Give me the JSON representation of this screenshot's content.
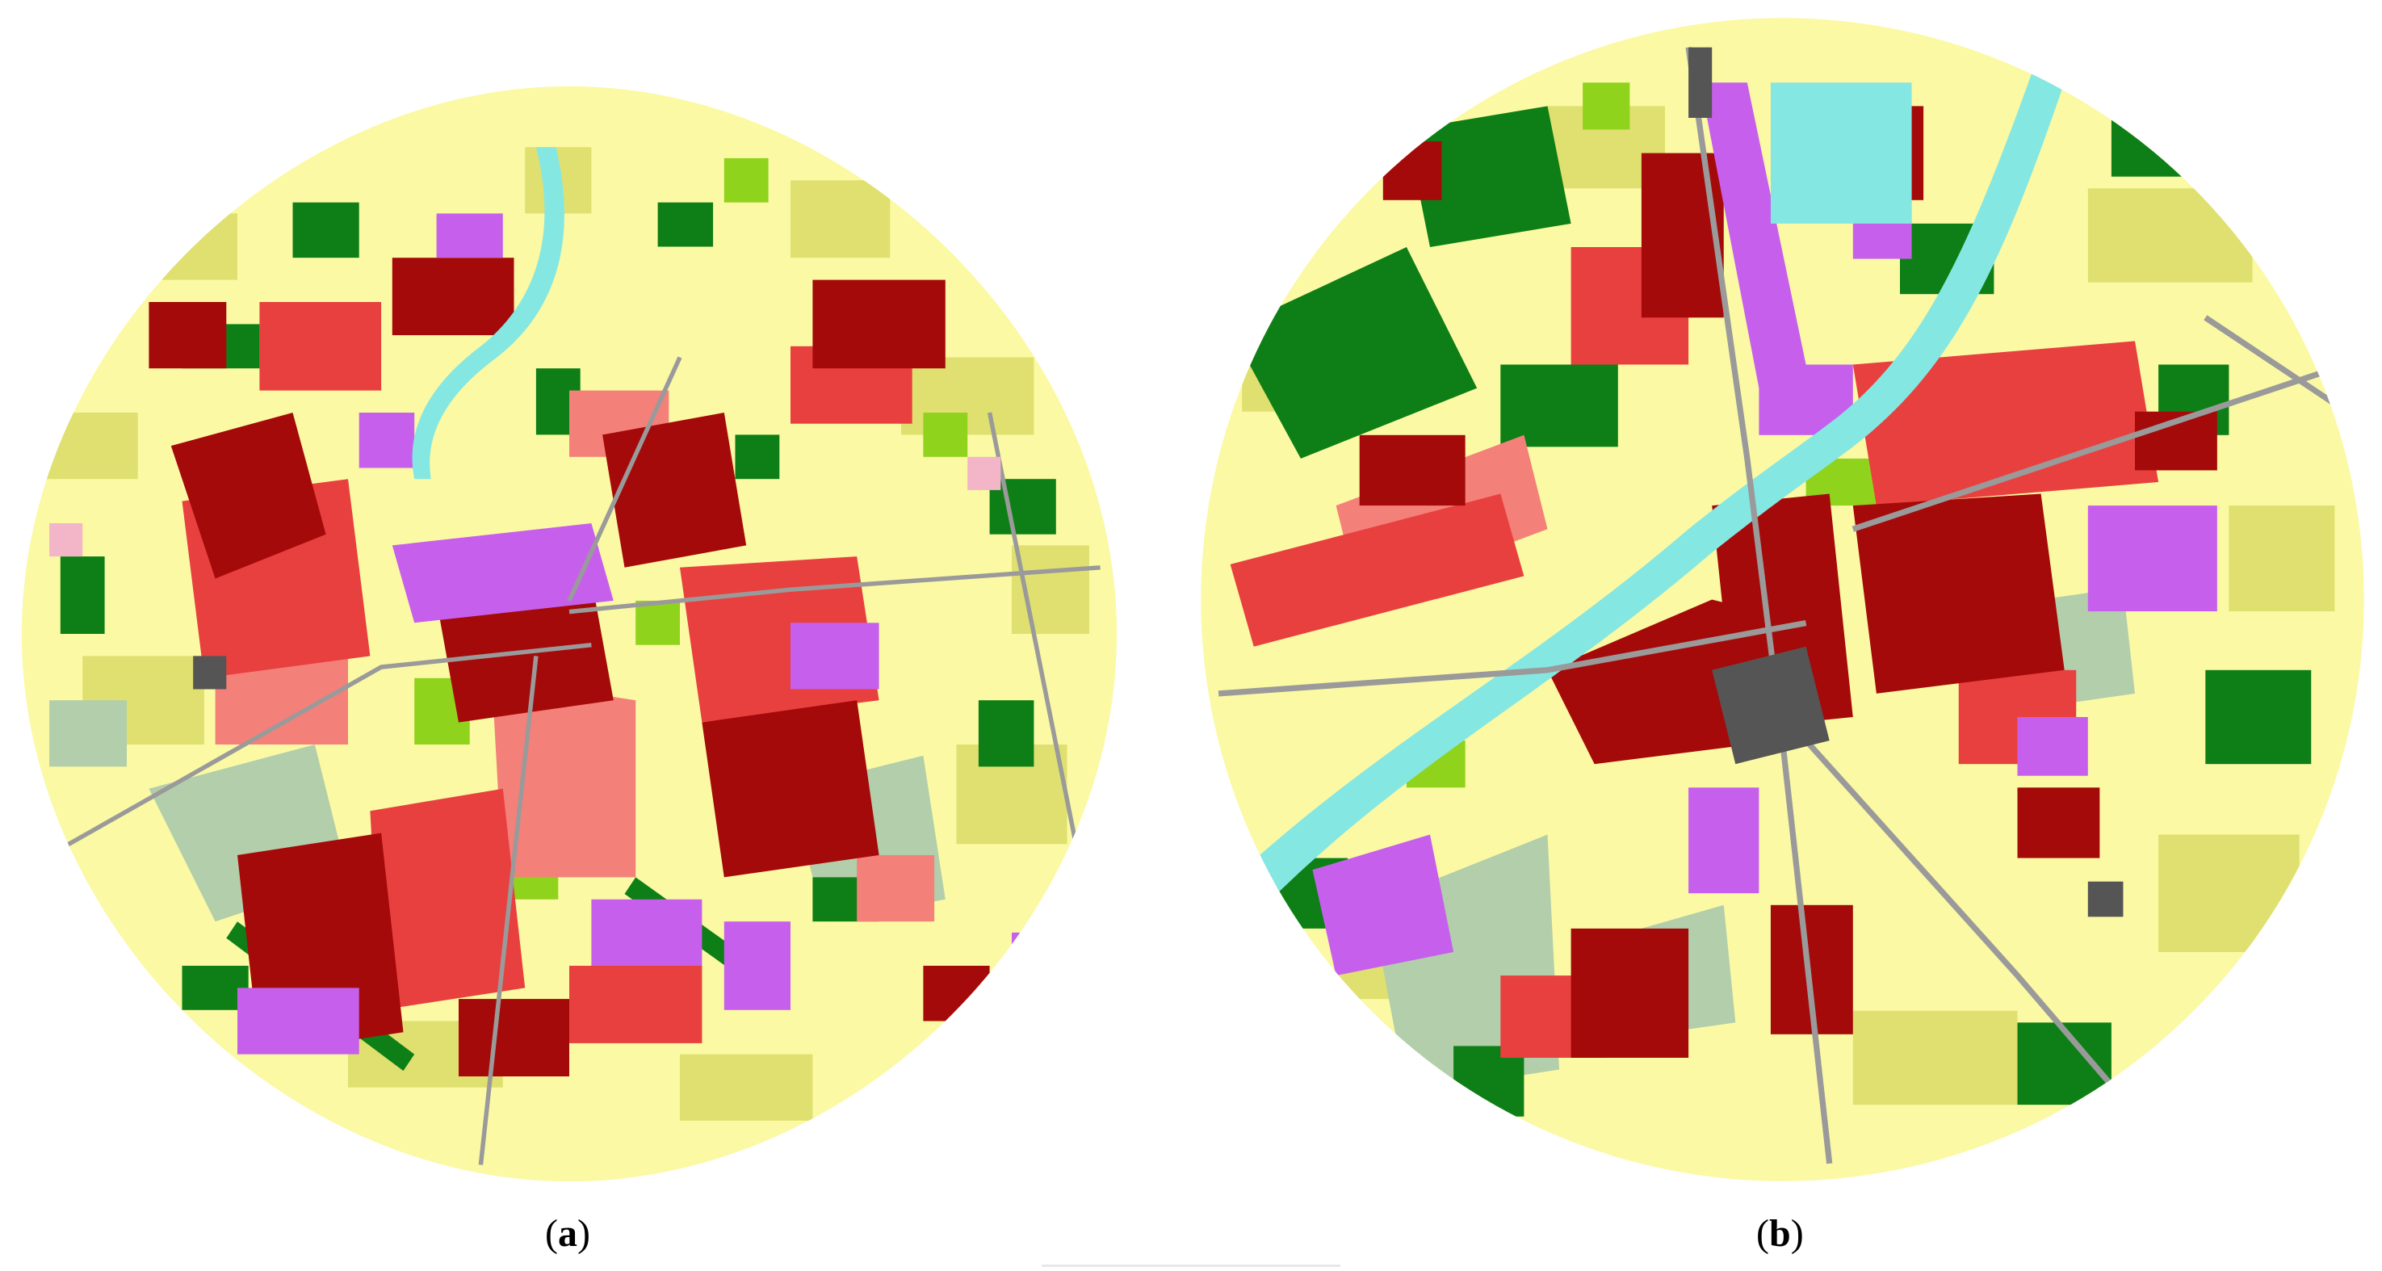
{
  "panels": [
    {
      "id": "a",
      "caption_open": "(",
      "caption_letter": "a",
      "caption_close": ")"
    },
    {
      "id": "b",
      "caption_open": "(",
      "caption_letter": "b",
      "caption_close": ")"
    }
  ],
  "colors": {
    "agriculture_light": "#fbf9a4",
    "agriculture_yellowgreen": "#dfe070",
    "forest": "#0e7f16",
    "grassland": "#8fd31c",
    "continuous_urban": "#a50a0a",
    "discontinuous_urban": "#e8403f",
    "light_urban": "#f4807a",
    "industrial_commercial": "#c660ec",
    "water": "#85e7e2",
    "roads": "#9a9a9a",
    "dark_infrastructure": "#555555",
    "sage_green": "#b2ceaa",
    "pink_misc": "#f2b6c8"
  }
}
